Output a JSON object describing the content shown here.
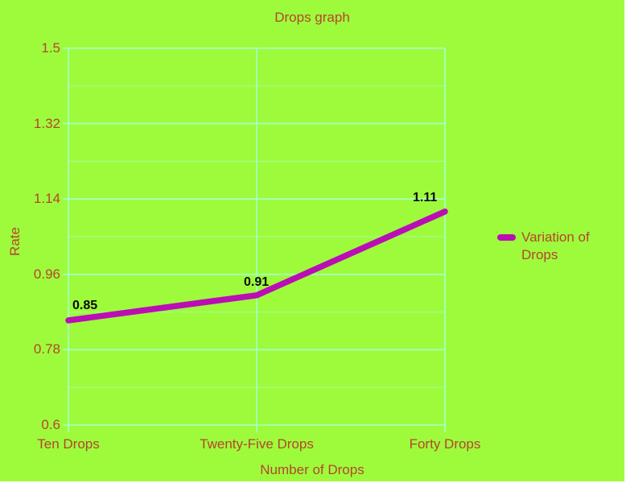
{
  "page": {
    "background_color": "#9EFB3C",
    "text_color": "#B4462B",
    "grid_color": "#A5FFD2"
  },
  "chart_data": {
    "type": "line",
    "title": "Drops graph",
    "xlabel": "Number of Drops",
    "ylabel": "Rate",
    "categories": [
      "Ten Drops",
      "Twenty-Five Drops",
      "Forty Drops"
    ],
    "series": [
      {
        "name": "Variation of Drops",
        "color": "#BB0DB6",
        "values": [
          0.85,
          0.91,
          1.11
        ]
      }
    ],
    "data_labels": [
      "0.85",
      "0.91",
      "1.11"
    ],
    "ylim": [
      0.6,
      1.5
    ],
    "yticks": [
      0.6,
      0.78,
      0.96,
      1.14,
      1.32,
      1.5
    ],
    "ytick_labels": [
      "0.6",
      "0.78",
      "0.96",
      "1.14",
      "1.32",
      "1.5"
    ],
    "minor_gridlines": true,
    "grid": true,
    "legend_position": "right",
    "legend_entries": [
      "Variation of Drops"
    ]
  }
}
